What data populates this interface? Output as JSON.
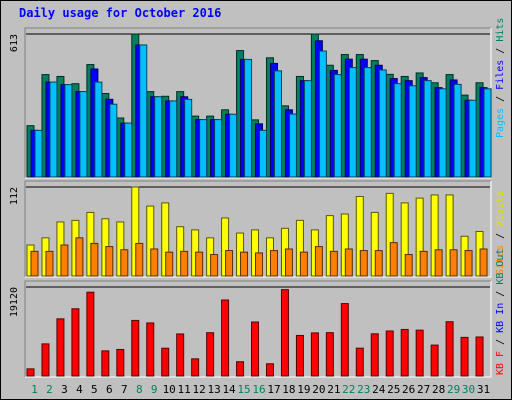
{
  "chart_data": {
    "type": "bar",
    "title": "Daily usage for October 2016",
    "categories": [
      "1",
      "2",
      "3",
      "4",
      "5",
      "6",
      "7",
      "8",
      "9",
      "10",
      "11",
      "12",
      "13",
      "14",
      "15",
      "16",
      "17",
      "18",
      "19",
      "20",
      "21",
      "22",
      "23",
      "24",
      "25",
      "26",
      "27",
      "28",
      "29",
      "30",
      "31"
    ],
    "weekend_days": [
      "1",
      "8",
      "15",
      "22",
      "29",
      "2",
      "9",
      "16",
      "23",
      "30"
    ],
    "panels": [
      {
        "name": "hits-files-pages",
        "ylim": [
          0,
          613
        ],
        "ytick": "613",
        "right_labels": [
          {
            "text": "Pages",
            "color": "#00c0ff"
          },
          {
            "text": "Files",
            "color": "#0000ff"
          },
          {
            "text": "Hits",
            "color": "#008060"
          }
        ],
        "series": [
          {
            "name": "Hits",
            "color": "#008060",
            "values": [
              220,
              439,
              431,
              400,
              482,
              358,
              253,
              613,
              366,
              346,
              366,
              261,
              261,
              288,
              542,
              245,
              511,
              305,
              431,
              613,
              479,
              525,
              525,
              499,
              440,
              431,
              446,
              404,
              439,
              351,
              404
            ]
          },
          {
            "name": "Files",
            "color": "#0000ff",
            "values": [
              200,
              407,
              396,
              366,
              463,
              333,
              231,
              566,
              344,
              326,
              344,
              246,
              246,
              269,
              504,
              228,
              487,
              288,
              413,
              584,
              457,
              505,
              505,
              479,
              422,
              413,
              426,
              383,
              416,
              329,
              383
            ]
          },
          {
            "name": "Pages",
            "color": "#00c0ff",
            "values": [
              200,
              407,
              396,
              366,
              407,
              312,
              231,
              566,
              344,
              326,
              333,
              246,
              246,
              269,
              504,
              200,
              455,
              270,
              413,
              540,
              439,
              469,
              469,
              459,
              400,
              391,
              413,
              378,
              397,
              329,
              378
            ]
          }
        ]
      },
      {
        "name": "visits-sites",
        "ylim": [
          0,
          112
        ],
        "ytick": "112",
        "right_labels": [
          {
            "text": "Sites",
            "color": "#ff8000"
          },
          {
            "text": "Visits",
            "color": "#e0e000"
          }
        ],
        "series": [
          {
            "name": "Visits",
            "color": "#ffff00",
            "values": [
              39,
              48,
              68,
              70,
              80,
              72,
              68,
              112,
              88,
              92,
              62,
              58,
              48,
              73,
              54,
              58,
              48,
              60,
              70,
              58,
              76,
              78,
              100,
              80,
              104,
              92,
              98,
              102,
              102,
              50,
              56
            ]
          },
          {
            "name": "Sites",
            "color": "#ff8000",
            "values": [
              31,
              31,
              39,
              48,
              41,
              37,
              33,
              41,
              34,
              30,
              31,
              30,
              27,
              32,
              30,
              29,
              32,
              34,
              30,
              37,
              31,
              34,
              32,
              32,
              42,
              27,
              31,
              33,
              33,
              32,
              34
            ]
          }
        ]
      },
      {
        "name": "kbytes",
        "ylim": [
          0,
          19120
        ],
        "ytick": "19120",
        "right_labels": [
          {
            "text": "KB F",
            "color": "#ff0000"
          },
          {
            "text": "KB In",
            "color": "#0000ff"
          },
          {
            "text": "KB Out",
            "color": "#008060"
          }
        ],
        "series": [
          {
            "name": "KBytes",
            "color": "#ff0000",
            "values": [
              1535,
              6900,
              12280,
              14440,
              18000,
              5400,
              5700,
              11940,
              11400,
              5970,
              9030,
              3690,
              9300,
              16330,
              3070,
              11600,
              2630,
              18550,
              8710,
              9260,
              9310,
              15560,
              5980,
              9060,
              9670,
              10000,
              9850,
              6640,
              11660,
              8300,
              8380
            ]
          }
        ]
      }
    ]
  }
}
